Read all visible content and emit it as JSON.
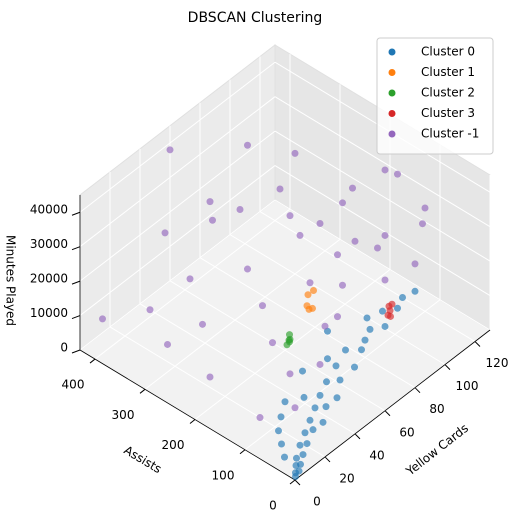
{
  "chart_data": {
    "type": "scatter3d",
    "title": "DBSCAN Clustering",
    "xlabel": "Yellow Cards",
    "ylabel": "Assists",
    "zlabel": "Minutes Played",
    "xlim": [
      0,
      130
    ],
    "ylim": [
      0,
      430
    ],
    "zlim": [
      0,
      45000
    ],
    "xticks": [
      0,
      20,
      40,
      60,
      80,
      100,
      120
    ],
    "yticks": [
      0,
      100,
      200,
      300,
      400
    ],
    "zticks": [
      0,
      10000,
      20000,
      30000,
      40000
    ],
    "grid": true,
    "legend": "upper right",
    "series": [
      {
        "name": "Cluster 0",
        "color": "#1f77b4",
        "x": [
          1,
          2,
          3,
          4,
          5,
          6,
          8,
          10,
          12,
          15,
          18,
          20,
          22,
          25,
          28,
          30,
          33,
          36,
          40,
          44,
          48,
          52,
          56,
          60,
          65,
          70,
          75,
          80,
          85,
          90,
          3,
          6,
          9,
          14,
          20,
          26,
          35,
          45,
          55,
          68
        ],
        "y": [
          2,
          5,
          1,
          10,
          4,
          15,
          8,
          20,
          12,
          25,
          18,
          30,
          10,
          35,
          22,
          40,
          15,
          45,
          30,
          50,
          25,
          55,
          35,
          40,
          45,
          30,
          50,
          35,
          40,
          30,
          30,
          45,
          60,
          70,
          80,
          60,
          90,
          70,
          100,
          60
        ],
        "z": [
          500,
          1000,
          1500,
          2000,
          2500,
          3000,
          4000,
          5000,
          5500,
          6500,
          7000,
          8000,
          8500,
          9500,
          10000,
          11000,
          11500,
          12500,
          13000,
          14000,
          14500,
          15500,
          16000,
          17000,
          18000,
          18500,
          19500,
          20000,
          21000,
          22000,
          3000,
          4500,
          6000,
          7500,
          9000,
          10000,
          12000,
          14000,
          16000,
          19000
        ]
      },
      {
        "name": "Cluster 1",
        "color": "#ff7f0e",
        "x": [
          68,
          72,
          70,
          74,
          66
        ],
        "y": [
          180,
          190,
          175,
          185,
          170
        ],
        "z": [
          12000,
          13000,
          11000,
          14000,
          12500
        ]
      },
      {
        "name": "Cluster 2",
        "color": "#2ca02c",
        "x": [
          36,
          38,
          34,
          37,
          35
        ],
        "y": [
          120,
          125,
          118,
          122,
          115
        ],
        "z": [
          18000,
          18500,
          17500,
          17000,
          19000
        ]
      },
      {
        "name": "Cluster 3",
        "color": "#d62728",
        "x": [
          90,
          92,
          88,
          91,
          89
        ],
        "y": [
          80,
          82,
          78,
          85,
          76
        ],
        "z": [
          12000,
          13000,
          11500,
          12500,
          11000
        ]
      },
      {
        "name": "Cluster -1",
        "color": "#9467bd",
        "x": [
          50,
          110,
          115,
          100,
          60,
          80,
          40,
          30,
          120,
          105,
          90,
          70,
          55,
          45,
          35,
          25,
          20,
          10,
          15,
          5,
          60,
          75,
          85,
          95,
          100,
          110,
          65,
          50,
          40,
          30,
          20,
          80,
          70,
          90,
          115,
          120,
          125,
          10,
          45,
          85
        ],
        "y": [
          400,
          150,
          140,
          300,
          350,
          250,
          380,
          300,
          100,
          200,
          220,
          320,
          260,
          200,
          150,
          260,
          350,
          200,
          300,
          400,
          150,
          130,
          170,
          120,
          180,
          90,
          110,
          90,
          70,
          100,
          60,
          60,
          200,
          300,
          250,
          180,
          120,
          100,
          300,
          350
        ],
        "z": [
          44000,
          40000,
          38000,
          35000,
          30000,
          28000,
          25000,
          22000,
          30000,
          32000,
          25000,
          27000,
          20000,
          18000,
          15000,
          14000,
          12000,
          9000,
          8000,
          10000,
          24000,
          20000,
          22000,
          25000,
          20000,
          18000,
          16000,
          20000,
          14000,
          12000,
          9000,
          26000,
          30000,
          28000,
          20000,
          15000,
          22000,
          6000,
          34000,
          38000
        ]
      }
    ]
  }
}
